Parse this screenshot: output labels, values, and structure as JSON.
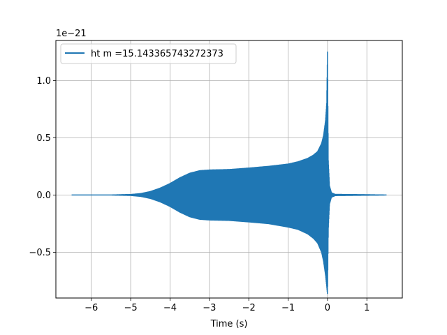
{
  "chart_data": {
    "type": "line",
    "title": "",
    "xlabel": "Time (s)",
    "ylabel": "",
    "y_offset_label": "1e−21",
    "xlim": [
      -6.9,
      1.9
    ],
    "ylim": [
      -0.9,
      1.35
    ],
    "x_ticks": [
      -6,
      -5,
      -4,
      -3,
      -2,
      -1,
      0,
      1
    ],
    "x_tick_labels": [
      "−6",
      "−5",
      "−4",
      "−3",
      "−2",
      "−1",
      "0",
      "1"
    ],
    "y_ticks": [
      -0.5,
      0.0,
      0.5,
      1.0
    ],
    "y_tick_labels": [
      "−0.5",
      "0.0",
      "0.5",
      "1.0"
    ],
    "grid": true,
    "legend_position": "top-left",
    "series": [
      {
        "name": "ht m =15.143365743272373",
        "color": "#1f77b4",
        "x_range": [
          -6.5,
          1.5
        ],
        "envelope": {
          "x": [
            -6.5,
            -5.5,
            -5.0,
            -4.75,
            -4.5,
            -4.25,
            -4.0,
            -3.75,
            -3.5,
            -3.25,
            -3.0,
            -2.75,
            -2.5,
            -2.0,
            -1.5,
            -1.0,
            -0.75,
            -0.5,
            -0.35,
            -0.25,
            -0.15,
            -0.1,
            -0.05,
            -0.02,
            0.0,
            0.02,
            0.05,
            0.1,
            0.2,
            1.5
          ],
          "upper": [
            0.0,
            0.0,
            0.004,
            0.012,
            0.03,
            0.06,
            0.1,
            0.15,
            0.19,
            0.212,
            0.218,
            0.22,
            0.222,
            0.235,
            0.25,
            0.27,
            0.29,
            0.32,
            0.35,
            0.38,
            0.45,
            0.52,
            0.65,
            0.8,
            1.25,
            0.3,
            0.08,
            0.02,
            0.005,
            0.0
          ],
          "lower": [
            0.0,
            0.0,
            -0.004,
            -0.012,
            -0.03,
            -0.06,
            -0.1,
            -0.15,
            -0.19,
            -0.212,
            -0.218,
            -0.22,
            -0.222,
            -0.235,
            -0.25,
            -0.28,
            -0.3,
            -0.34,
            -0.38,
            -0.42,
            -0.5,
            -0.58,
            -0.7,
            -0.8,
            -0.87,
            -0.3,
            -0.08,
            -0.02,
            -0.005,
            0.0
          ]
        }
      }
    ]
  }
}
